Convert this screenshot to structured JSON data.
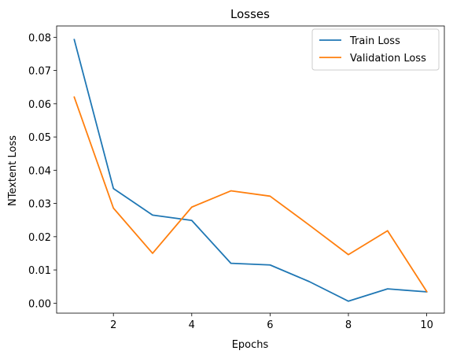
{
  "chart_data": {
    "type": "line",
    "title": "Losses",
    "xlabel": "Epochs",
    "ylabel": "NTextent Loss",
    "x": [
      1,
      2,
      3,
      4,
      5,
      6,
      7,
      8,
      9,
      10
    ],
    "xlim": [
      0.55,
      10.45
    ],
    "ylim": [
      -0.003,
      0.0834
    ],
    "xticks": [
      2,
      4,
      6,
      8,
      10
    ],
    "xtick_labels": [
      "2",
      "4",
      "6",
      "8",
      "10"
    ],
    "yticks": [
      0.0,
      0.01,
      0.02,
      0.03,
      0.04,
      0.05,
      0.06,
      0.07,
      0.08
    ],
    "ytick_labels": [
      "0.00",
      "0.01",
      "0.02",
      "0.03",
      "0.04",
      "0.05",
      "0.06",
      "0.07",
      "0.08"
    ],
    "grid": false,
    "legend_position": "top-right",
    "series": [
      {
        "name": "Train Loss",
        "color": "#1f77b4",
        "values": [
          0.0793,
          0.0345,
          0.0265,
          0.0249,
          0.012,
          0.0115,
          0.0065,
          0.0006,
          0.0043,
          0.0034
        ]
      },
      {
        "name": "Validation Loss",
        "color": "#ff7f0e",
        "values": [
          0.062,
          0.0286,
          0.015,
          0.0289,
          0.0338,
          0.0322,
          0.0235,
          0.0146,
          0.0218,
          0.0035
        ]
      }
    ]
  }
}
